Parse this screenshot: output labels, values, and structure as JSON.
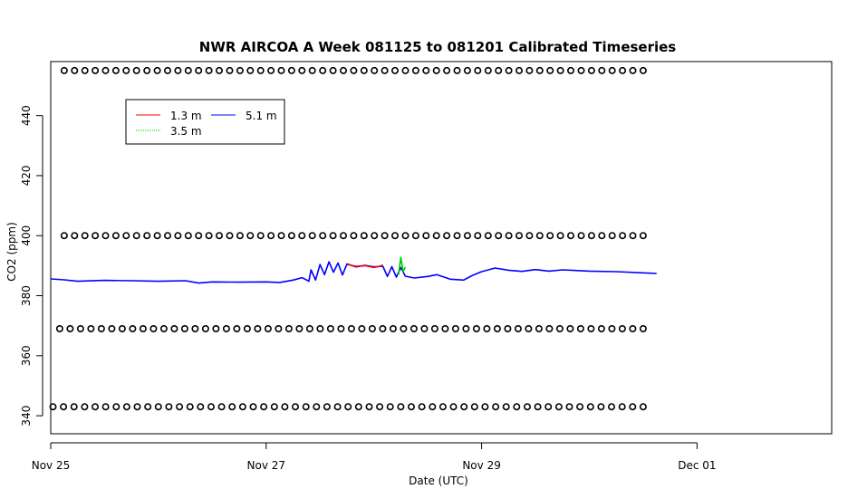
{
  "chart_data": {
    "type": "line",
    "title": "NWR AIRCOA A  Week 081125 to 081201  Calibrated Timeseries",
    "xlabel": "Date (UTC)",
    "ylabel": "CO2 (ppm)",
    "x_unit": "days",
    "xlim": [
      "2008-11-25T00:00",
      "2008-12-02T06:00"
    ],
    "ylim": [
      334,
      458
    ],
    "x_ticks": [
      {
        "label": "Nov 25",
        "value": "2008-11-25T00:00"
      },
      {
        "label": "Nov 27",
        "value": "2008-11-27T00:00"
      },
      {
        "label": "Nov 29",
        "value": "2008-11-29T00:00"
      },
      {
        "label": "Dec 01",
        "value": "2008-12-01T00:00"
      }
    ],
    "y_ticks": [
      340,
      360,
      380,
      400,
      420,
      440
    ],
    "grid": false,
    "legend_position": "top-left",
    "legend": [
      {
        "label": "1.3 m",
        "color": "#ff0000"
      },
      {
        "label": "5.1 m",
        "color": "#0000ff"
      },
      {
        "label": "3.5 m",
        "color": "#00cc00"
      }
    ],
    "series": [
      {
        "name": "5.1 m",
        "color": "#0000ff",
        "points": [
          [
            "2008-11-25T00:00",
            385.6
          ],
          [
            "2008-11-25T03:00",
            385.3
          ],
          [
            "2008-11-25T06:00",
            384.8
          ],
          [
            "2008-11-25T12:00",
            385.1
          ],
          [
            "2008-11-25T18:00",
            385.0
          ],
          [
            "2008-11-26T00:00",
            384.8
          ],
          [
            "2008-11-26T06:00",
            385.0
          ],
          [
            "2008-11-26T09:00",
            384.2
          ],
          [
            "2008-11-26T12:00",
            384.6
          ],
          [
            "2008-11-26T18:00",
            384.5
          ],
          [
            "2008-11-27T00:00",
            384.6
          ],
          [
            "2008-11-27T03:00",
            384.4
          ],
          [
            "2008-11-27T06:00",
            385.2
          ],
          [
            "2008-11-27T08:00",
            386.0
          ],
          [
            "2008-11-27T09:30",
            384.8
          ],
          [
            "2008-11-27T10:00",
            388.6
          ],
          [
            "2008-11-27T11:00",
            385.2
          ],
          [
            "2008-11-27T12:00",
            390.4
          ],
          [
            "2008-11-27T13:00",
            387.0
          ],
          [
            "2008-11-27T14:00",
            391.3
          ],
          [
            "2008-11-27T15:00",
            387.8
          ],
          [
            "2008-11-27T16:00",
            390.9
          ],
          [
            "2008-11-27T17:00",
            386.9
          ],
          [
            "2008-11-27T18:00",
            390.6
          ],
          [
            "2008-11-27T20:00",
            389.6
          ],
          [
            "2008-11-27T22:00",
            390.1
          ],
          [
            "2008-11-28T00:00",
            389.6
          ],
          [
            "2008-11-28T02:00",
            389.8
          ],
          [
            "2008-11-28T03:00",
            386.4
          ],
          [
            "2008-11-28T04:00",
            389.7
          ],
          [
            "2008-11-28T05:00",
            386.2
          ],
          [
            "2008-11-28T06:00",
            389.4
          ],
          [
            "2008-11-28T07:00",
            386.5
          ],
          [
            "2008-11-28T09:00",
            385.9
          ],
          [
            "2008-11-28T12:00",
            386.4
          ],
          [
            "2008-11-28T14:00",
            387.0
          ],
          [
            "2008-11-28T17:00",
            385.5
          ],
          [
            "2008-11-28T20:00",
            385.2
          ],
          [
            "2008-11-28T22:00",
            386.8
          ],
          [
            "2008-11-29T00:00",
            388.0
          ],
          [
            "2008-11-29T03:00",
            389.2
          ],
          [
            "2008-11-29T06:00",
            388.5
          ],
          [
            "2008-11-29T09:00",
            388.1
          ],
          [
            "2008-11-29T12:00",
            388.7
          ],
          [
            "2008-11-29T15:00",
            388.2
          ],
          [
            "2008-11-29T18:00",
            388.6
          ],
          [
            "2008-11-30T00:00",
            388.2
          ],
          [
            "2008-11-30T06:00",
            388.0
          ],
          [
            "2008-11-30T12:00",
            387.6
          ],
          [
            "2008-11-30T15:00",
            387.4
          ]
        ]
      },
      {
        "name": "1.3 m",
        "color": "#ff0000",
        "points": [
          [
            "2008-11-27T18:00",
            390.4
          ],
          [
            "2008-11-27T20:00",
            389.8
          ],
          [
            "2008-11-27T22:00",
            390.0
          ],
          [
            "2008-11-28T00:00",
            389.4
          ],
          [
            "2008-11-28T01:00",
            389.7
          ],
          [
            "2008-11-28T02:00",
            390.2
          ]
        ]
      },
      {
        "name": "3.5 m",
        "color": "#00cc00",
        "points": [
          [
            "2008-11-28T05:30",
            387.0
          ],
          [
            "2008-11-28T06:00",
            392.8
          ],
          [
            "2008-11-28T06:30",
            388.0
          ],
          [
            "2008-11-28T07:00",
            389.5
          ]
        ]
      }
    ],
    "reference_rows": [
      {
        "y": 455,
        "x_start": "2008-11-25T03:00"
      },
      {
        "y": 400,
        "x_start": "2008-11-25T03:00"
      },
      {
        "y": 369,
        "x_start": "2008-11-25T02:00"
      },
      {
        "y": 343,
        "x_start": "2008-11-25T00:30"
      }
    ],
    "reference_x_end": "2008-11-30T12:00"
  }
}
